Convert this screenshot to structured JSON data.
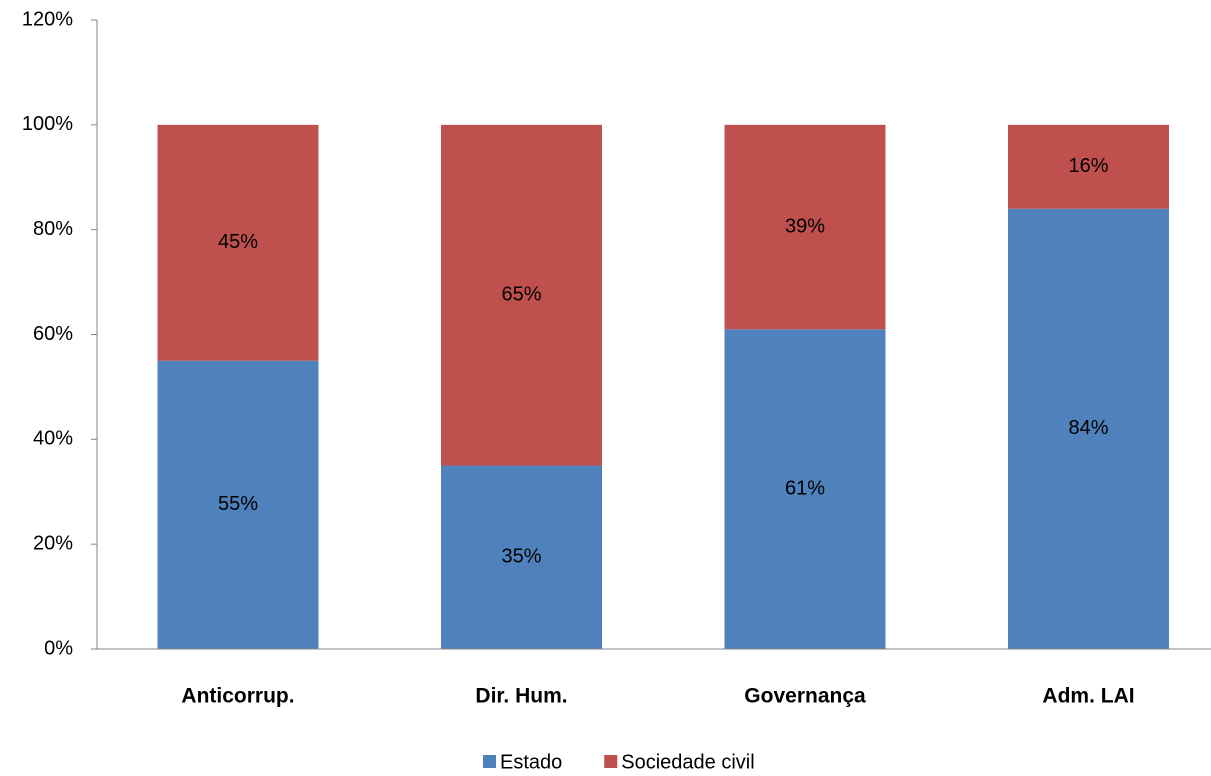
{
  "chart_data": {
    "type": "stacked_bar",
    "categories": [
      "Anticorrup.",
      "Dir. Hum.",
      "Governança",
      "Adm. LAI"
    ],
    "series": [
      {
        "name": "Estado",
        "color": "#4f81bd",
        "values": [
          55,
          35,
          61,
          84
        ],
        "value_labels": [
          "55%",
          "35%",
          "61%",
          "84%"
        ]
      },
      {
        "name": "Sociedade civil",
        "color": "#c0504d",
        "values": [
          45,
          65,
          39,
          16
        ],
        "value_labels": [
          "45%",
          "65%",
          "39%",
          "16%"
        ]
      }
    ],
    "ylim": [
      0,
      120
    ],
    "yticks": [
      {
        "value": 0,
        "label": "0%"
      },
      {
        "value": 20,
        "label": "20%"
      },
      {
        "value": 40,
        "label": "40%"
      },
      {
        "value": 60,
        "label": "60%"
      },
      {
        "value": 80,
        "label": "80%"
      },
      {
        "value": 100,
        "label": "100%"
      },
      {
        "value": 120,
        "label": "120%"
      }
    ],
    "grid": false,
    "legend": "bottom"
  }
}
